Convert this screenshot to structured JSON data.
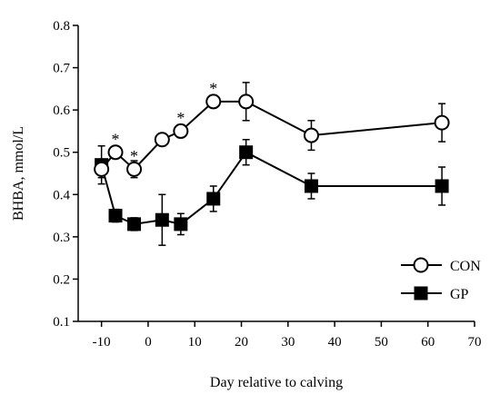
{
  "chart_data": {
    "type": "line",
    "xlabel": "Day relative to calving",
    "ylabel": "BHBA, mmol/L",
    "xlim": [
      -15,
      70
    ],
    "ylim": [
      0.1,
      0.8
    ],
    "x_ticks": [
      -10,
      0,
      10,
      20,
      30,
      40,
      50,
      60,
      70
    ],
    "x_tick_labels": [
      "-10",
      "0",
      "10",
      "20",
      "30",
      "40",
      "50",
      "60",
      "70"
    ],
    "y_ticks": [
      0.1,
      0.2,
      0.3,
      0.4,
      0.5,
      0.6,
      0.7,
      0.8
    ],
    "y_tick_labels": [
      "0.1",
      "0.2",
      "0.3",
      "0.4",
      "0.5",
      "0.6",
      "0.7",
      "0.8"
    ],
    "legend_position": "bottom-right",
    "grid": false,
    "series": [
      {
        "name": "CON",
        "marker": "open-circle",
        "color": "#000000",
        "x": [
          -10,
          -7,
          -3,
          3,
          7,
          14,
          21,
          35,
          63
        ],
        "y": [
          0.46,
          0.5,
          0.46,
          0.53,
          0.55,
          0.62,
          0.62,
          0.54,
          0.57
        ],
        "error": [
          0.02,
          0.015,
          0.02,
          0.015,
          0.015,
          0.015,
          0.045,
          0.035,
          0.045
        ]
      },
      {
        "name": "GP",
        "marker": "filled-square",
        "color": "#000000",
        "x": [
          -10,
          -7,
          -3,
          3,
          7,
          14,
          21,
          35,
          63
        ],
        "y": [
          0.47,
          0.35,
          0.33,
          0.34,
          0.33,
          0.39,
          0.5,
          0.42,
          0.42
        ],
        "error": [
          0.045,
          0.015,
          0.015,
          0.06,
          0.025,
          0.03,
          0.03,
          0.03,
          0.045
        ]
      }
    ],
    "annotations": [
      {
        "text": "*",
        "x": -7,
        "y": 0.535
      },
      {
        "text": "*",
        "x": -3,
        "y": 0.495
      },
      {
        "text": "*",
        "x": 7,
        "y": 0.585
      },
      {
        "text": "*",
        "x": 14,
        "y": 0.655
      }
    ]
  }
}
